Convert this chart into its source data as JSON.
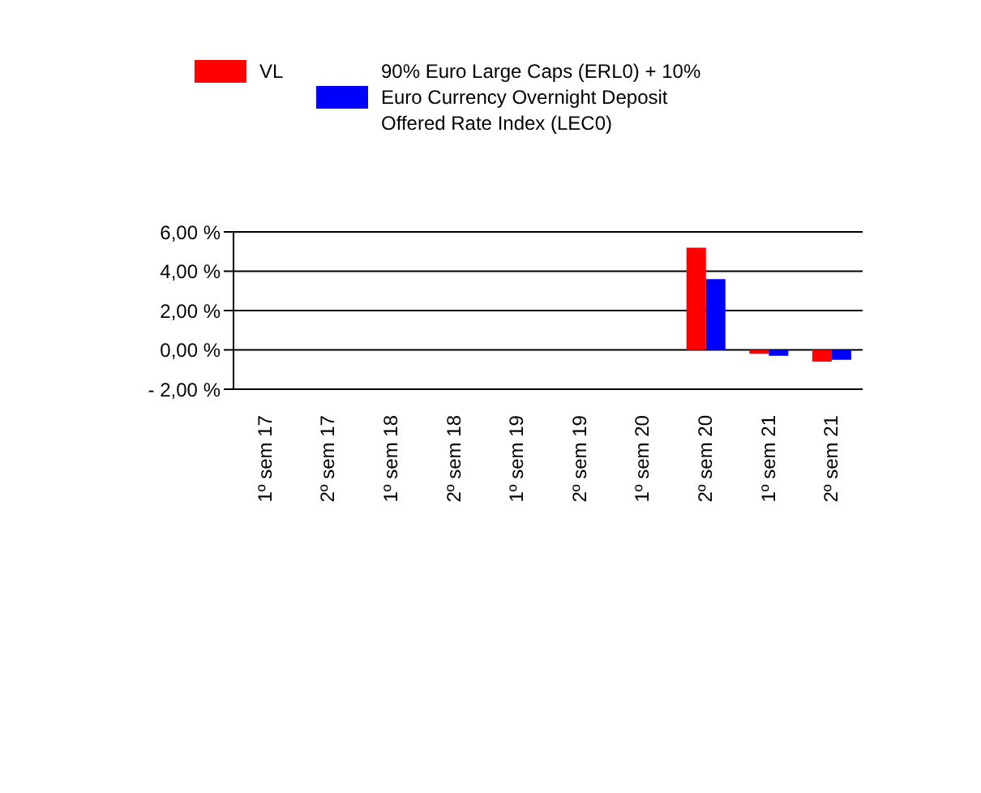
{
  "chart_data": {
    "type": "bar",
    "categories": [
      "1º sem 17",
      "2º sem 17",
      "1º sem 18",
      "2º sem 18",
      "1º sem 19",
      "2º sem 19",
      "1º sem 20",
      "2º sem 20",
      "1º sem 21",
      "2º sem 21"
    ],
    "series": [
      {
        "name": "VL",
        "color": "#ff0000",
        "values": [
          null,
          null,
          null,
          null,
          null,
          null,
          null,
          5.2,
          -0.2,
          -0.6
        ]
      },
      {
        "name": "90% Euro Large Caps (ERL0) + 10% Euro Currency Overnight Deposit Offered Rate Index (LEC0)",
        "color": "#0000ff",
        "values": [
          null,
          null,
          null,
          null,
          null,
          null,
          null,
          3.6,
          -0.3,
          -0.5
        ]
      }
    ],
    "ylim": [
      -2,
      6
    ],
    "yticks": [
      {
        "value": -2,
        "label": "- 2,00 %"
      },
      {
        "value": 0,
        "label": "0,00 %"
      },
      {
        "value": 2,
        "label": "2,00 %"
      },
      {
        "value": 4,
        "label": "4,00 %"
      },
      {
        "value": 6,
        "label": "6,00 %"
      }
    ],
    "grid": "y",
    "legend": "top"
  }
}
